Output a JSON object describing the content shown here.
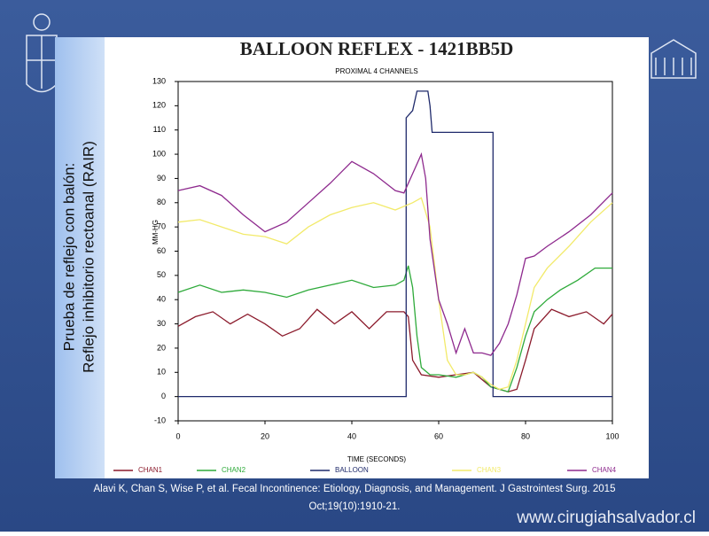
{
  "slide": {
    "side_text": [
      "Prueba de reflejo con balón:",
      "Reflejo inhibitorio rectoanal (RAIR)"
    ],
    "citation": [
      "Alavi K, Chan S, Wise P, et al. Fecal Incontinence: Etiology, Diagnosis, and Management. J Gastrointest Surg. 2015",
      "Oct;19(10):1910-21."
    ],
    "website": "www.cirugiahsalvador.cl"
  },
  "chart_data": {
    "type": "line",
    "title": "BALLOON REFLEX - 1421BB5D",
    "subtitle": "PROXIMAL 4 CHANNELS",
    "x_label": "TIME (SECONDS)",
    "y_label": "MM-HG",
    "xlim": [
      0,
      100
    ],
    "ylim": [
      -10,
      130
    ],
    "xticks": [
      0,
      20,
      40,
      60,
      80,
      100
    ],
    "yticks": [
      -10,
      0,
      10,
      20,
      30,
      40,
      50,
      60,
      70,
      80,
      90,
      100,
      110,
      120,
      130
    ],
    "series": [
      {
        "name": "CHAN1",
        "color": "#8b1a2b",
        "x": [
          0,
          4,
          8,
          12,
          16,
          20,
          24,
          28,
          32,
          36,
          40,
          44,
          48,
          52,
          53,
          54,
          56,
          60,
          64,
          68,
          70,
          72,
          76,
          78,
          80,
          82,
          86,
          90,
          94,
          98,
          100
        ],
        "values": [
          29,
          33,
          35,
          30,
          34,
          30,
          25,
          28,
          36,
          30,
          35,
          28,
          35,
          35,
          33,
          15,
          9,
          8,
          9,
          10,
          7,
          4,
          2,
          3,
          15,
          28,
          36,
          33,
          35,
          30,
          34
        ]
      },
      {
        "name": "CHAN2",
        "color": "#2eaa3a",
        "x": [
          0,
          5,
          10,
          15,
          20,
          25,
          30,
          35,
          40,
          45,
          50,
          52,
          53,
          54,
          55,
          56,
          58,
          60,
          64,
          66,
          68,
          70,
          72,
          74,
          76,
          78,
          80,
          82,
          85,
          88,
          92,
          96,
          100
        ],
        "values": [
          43,
          46,
          43,
          44,
          43,
          41,
          44,
          46,
          48,
          45,
          46,
          48,
          54,
          45,
          25,
          12,
          9,
          9,
          8,
          9,
          10,
          8,
          4,
          3,
          2,
          12,
          25,
          35,
          40,
          44,
          48,
          53,
          53
        ]
      },
      {
        "name": "BALLOON",
        "color": "#1f2a6b",
        "x": [
          0,
          52.5,
          52.5,
          54,
          55,
          57.5,
          58,
          58.5,
          72.5,
          72.5,
          100
        ],
        "values": [
          0,
          0,
          115,
          118,
          126,
          126,
          120,
          109,
          109,
          0,
          0
        ]
      },
      {
        "name": "CHAN3",
        "color": "#f2ea6a",
        "x": [
          0,
          5,
          10,
          15,
          20,
          25,
          30,
          35,
          40,
          45,
          50,
          54,
          56,
          58,
          60,
          62,
          64,
          66,
          68,
          70,
          72,
          74,
          76,
          78,
          80,
          82,
          85,
          90,
          95,
          100
        ],
        "values": [
          72,
          73,
          70,
          67,
          66,
          63,
          70,
          75,
          78,
          80,
          77,
          80,
          82,
          70,
          40,
          15,
          9,
          9,
          10,
          8,
          5,
          3,
          4,
          15,
          30,
          45,
          53,
          62,
          72,
          80
        ]
      },
      {
        "name": "CHAN4",
        "color": "#8e2a8e",
        "x": [
          0,
          5,
          10,
          15,
          20,
          25,
          30,
          35,
          40,
          45,
          50,
          52,
          54,
          56,
          57,
          58,
          60,
          62,
          64,
          66,
          68,
          70,
          72,
          74,
          76,
          78,
          80,
          82,
          85,
          90,
          95,
          100
        ],
        "values": [
          85,
          87,
          83,
          75,
          68,
          72,
          80,
          88,
          97,
          92,
          85,
          84,
          92,
          100,
          90,
          65,
          40,
          30,
          18,
          28,
          18,
          18,
          17,
          22,
          30,
          42,
          57,
          58,
          62,
          68,
          75,
          84
        ]
      }
    ]
  }
}
